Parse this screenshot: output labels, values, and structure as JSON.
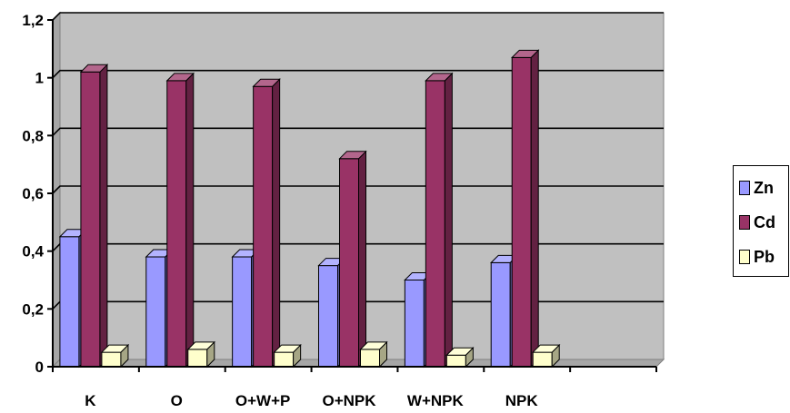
{
  "chart_data": {
    "type": "bar",
    "categories": [
      "K",
      "O",
      "O+W+P",
      "O+NPK",
      "W+NPK",
      "NPK",
      ""
    ],
    "series": [
      {
        "name": "Zn",
        "color": "#9999ff",
        "values": [
          0.45,
          0.38,
          0.38,
          0.35,
          0.3,
          0.36,
          null
        ]
      },
      {
        "name": "Cd",
        "color": "#993366",
        "values": [
          1.02,
          0.99,
          0.97,
          0.72,
          0.99,
          1.07,
          null
        ]
      },
      {
        "name": "Pb",
        "color": "#ffffcc",
        "values": [
          0.05,
          0.06,
          0.05,
          0.06,
          0.04,
          0.05,
          null
        ]
      }
    ],
    "yticks": [
      "0",
      "0,2",
      "0,4",
      "0,6",
      "0,8",
      "1",
      "1,2"
    ],
    "ylim": [
      0,
      1.2
    ],
    "ystep": 0.2,
    "grid": true,
    "legend": "right",
    "plot_background": "#c0c0c0"
  }
}
